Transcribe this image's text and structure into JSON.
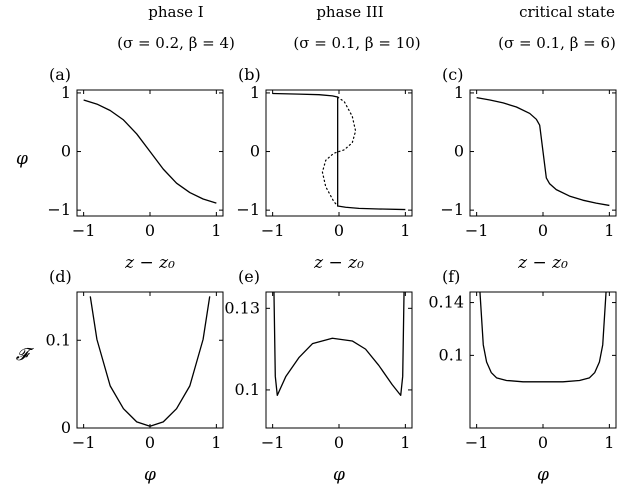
{
  "columns": [
    {
      "title_line1": "phase I",
      "title_line2": "(σ = 0.2, β = 4)"
    },
    {
      "title_line1": "phase III",
      "title_line2": "(σ = 0.1, β = 10)"
    },
    {
      "title_line1": "critical state",
      "title_line2": "(σ = 0.1, β = 6)"
    }
  ],
  "row_labels": {
    "top": "φ",
    "bottom": "𝓕"
  },
  "chart_data": [
    {
      "id": "a",
      "panel_label": "(a)",
      "type": "line",
      "xlabel": "z − z₀",
      "xlim": [
        -1.1,
        1.1
      ],
      "ylim": [
        -1.1,
        1.05
      ],
      "xticks": [
        -1,
        0,
        1
      ],
      "yticks": [
        -1,
        0,
        1
      ],
      "series": [
        {
          "style": "solid",
          "x": [
            -1,
            -0.8,
            -0.6,
            -0.4,
            -0.2,
            0,
            0.2,
            0.4,
            0.6,
            0.8,
            1
          ],
          "y": [
            0.88,
            0.81,
            0.7,
            0.54,
            0.3,
            0,
            -0.3,
            -0.54,
            -0.7,
            -0.81,
            -0.88
          ]
        }
      ]
    },
    {
      "id": "b",
      "panel_label": "(b)",
      "type": "line",
      "xlabel": "z − z₀",
      "xlim": [
        -1.1,
        1.1
      ],
      "ylim": [
        -1.1,
        1.05
      ],
      "xticks": [
        -1,
        0,
        1
      ],
      "yticks": [
        -1,
        0,
        1
      ],
      "series": [
        {
          "style": "solid",
          "x": [
            -1,
            -0.6,
            -0.3,
            -0.1,
            -0.02,
            -0.02,
            -0.02,
            0.1,
            0.3,
            0.6,
            1
          ],
          "y": [
            0.99,
            0.98,
            0.97,
            0.95,
            0.93,
            0,
            -0.93,
            -0.95,
            -0.97,
            -0.98,
            -0.99
          ]
        },
        {
          "style": "dotted",
          "x": [
            -0.02,
            0.08,
            0.2,
            0.25,
            0.2,
            0.08,
            0,
            -0.08,
            -0.2,
            -0.25,
            -0.2,
            -0.08,
            -0.02
          ],
          "y": [
            0.93,
            0.85,
            0.6,
            0.35,
            0.15,
            0.03,
            0,
            -0.03,
            -0.15,
            -0.35,
            -0.6,
            -0.85,
            -0.93
          ]
        }
      ]
    },
    {
      "id": "c",
      "panel_label": "(c)",
      "type": "line",
      "xlabel": "z − z₀",
      "xlim": [
        -1.1,
        1.1
      ],
      "ylim": [
        -1.1,
        1.05
      ],
      "xticks": [
        -1,
        0,
        1
      ],
      "yticks": [
        -1,
        0,
        1
      ],
      "series": [
        {
          "style": "solid",
          "x": [
            -1,
            -0.8,
            -0.6,
            -0.4,
            -0.2,
            -0.1,
            -0.05,
            0,
            0.05,
            0.1,
            0.2,
            0.4,
            0.6,
            0.8,
            1
          ],
          "y": [
            0.92,
            0.88,
            0.83,
            0.76,
            0.65,
            0.55,
            0.45,
            0,
            -0.45,
            -0.55,
            -0.65,
            -0.76,
            -0.83,
            -0.88,
            -0.92
          ]
        }
      ]
    },
    {
      "id": "d",
      "panel_label": "(d)",
      "type": "line",
      "xlabel": "φ",
      "xlim": [
        -1.1,
        1.1
      ],
      "ylim": [
        0,
        0.155
      ],
      "xticks": [
        -1,
        0,
        1
      ],
      "yticks": [
        0,
        0.1
      ],
      "series": [
        {
          "style": "solid",
          "x": [
            -0.9,
            -0.8,
            -0.6,
            -0.4,
            -0.2,
            0,
            0.2,
            0.4,
            0.6,
            0.8,
            0.9
          ],
          "y": [
            0.15,
            0.101,
            0.048,
            0.022,
            0.007,
            0.002,
            0.007,
            0.022,
            0.048,
            0.101,
            0.15
          ]
        }
      ]
    },
    {
      "id": "e",
      "panel_label": "(e)",
      "type": "line",
      "xlabel": "φ",
      "xlim": [
        -1.1,
        1.1
      ],
      "ylim": [
        0.086,
        0.136
      ],
      "xticks": [
        -1,
        0,
        1
      ],
      "yticks": [
        0.1,
        0.13
      ],
      "series": [
        {
          "style": "solid",
          "x": [
            -0.98,
            -0.96,
            -0.93,
            -0.8,
            -0.6,
            -0.4,
            -0.1,
            0.2,
            0.4,
            0.6,
            0.8,
            0.93,
            0.96,
            0.98
          ],
          "y": [
            0.136,
            0.105,
            0.098,
            0.105,
            0.112,
            0.117,
            0.119,
            0.118,
            0.115,
            0.109,
            0.102,
            0.098,
            0.105,
            0.136
          ]
        }
      ]
    },
    {
      "id": "f",
      "panel_label": "(f)",
      "type": "line",
      "xlabel": "φ",
      "xlim": [
        -1.1,
        1.1
      ],
      "ylim": [
        0.045,
        0.148
      ],
      "xticks": [
        -1,
        0,
        1
      ],
      "yticks": [
        0.1,
        0.14
      ],
      "series": [
        {
          "style": "solid",
          "x": [
            -0.95,
            -0.9,
            -0.85,
            -0.78,
            -0.7,
            -0.55,
            -0.3,
            0,
            0.3,
            0.55,
            0.7,
            0.78,
            0.85,
            0.9,
            0.95
          ],
          "y": [
            0.148,
            0.108,
            0.095,
            0.087,
            0.083,
            0.081,
            0.08,
            0.08,
            0.08,
            0.081,
            0.083,
            0.087,
            0.095,
            0.108,
            0.148
          ]
        }
      ]
    }
  ]
}
